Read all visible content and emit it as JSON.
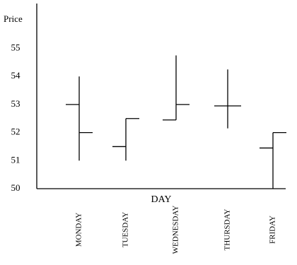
{
  "chart_data": {
    "type": "ohlc",
    "y_label": "Price",
    "x_label": "DAY",
    "categories": [
      "MONDAY",
      "TUESDAY",
      "WEDNESDAY",
      "THURSDAY",
      "FRIDAY"
    ],
    "open": [
      53.0,
      51.5,
      52.45,
      52.95,
      51.45
    ],
    "high": [
      54.0,
      52.5,
      54.75,
      54.25,
      52.0
    ],
    "low": [
      51.0,
      51.0,
      52.45,
      52.15,
      50.0
    ],
    "close": [
      52.0,
      52.5,
      53.0,
      52.95,
      52.0
    ],
    "color": "#000000",
    "ylim": [
      50,
      56.6
    ],
    "yticks": [
      50,
      51,
      52,
      53,
      54,
      55
    ],
    "grid": false
  }
}
